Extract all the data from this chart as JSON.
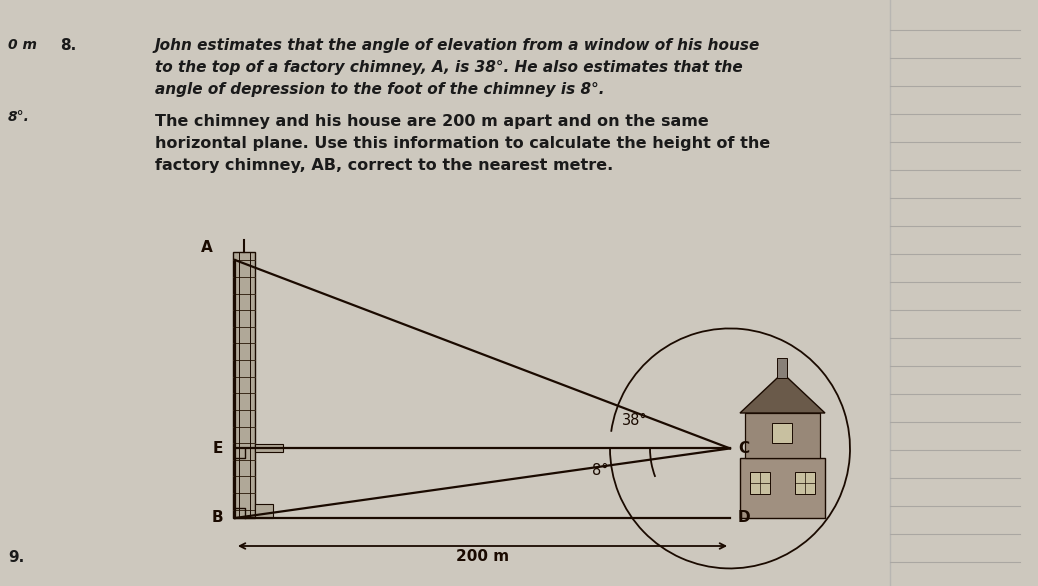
{
  "bg_color": "#cdc8be",
  "text_color": "#1a1a1a",
  "line_color": "#1a0a00",
  "title_lines": [
    "John estimates that the angle of elevation from a window of his house",
    "to the top of a factory chimney, A, is 38°. He also estimates that the",
    "angle of depression to the foot of the chimney is 8°."
  ],
  "body_lines": [
    "The chimney and his house are 200 m apart and on the same",
    "horizontal plane. Use this information to calculate the height of the",
    "factory chimney, AB, correct to the nearest metre."
  ],
  "left_label1": "0 m",
  "left_label2": "8°.",
  "question_number": "8.",
  "bottom_number": "9.",
  "angle_38_label": "38°",
  "angle_8_label": "8°",
  "dist_label": "200 m",
  "chimney_color": "#5a4a3a",
  "chimney_rung_color": "#3a2a1a",
  "house_wall_color": "#8a7a6a",
  "house_roof_color": "#5a4a3a",
  "house_window_color": "#c8c0a0",
  "right_panel_color": "#c8c8c8",
  "right_line_color": "#888888"
}
